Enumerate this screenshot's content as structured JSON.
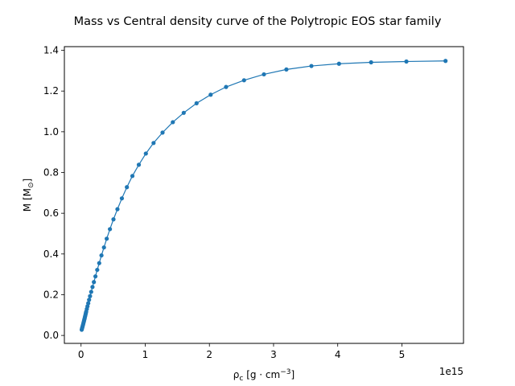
{
  "chart_data": {
    "type": "line",
    "title": "Mass vs Central density curve of the Polytropic EOS star family",
    "xlabel": "ρ_c [g · cm^−3]",
    "ylabel": "M [M_⊙]",
    "x_offset_label": "1e15",
    "x_scale": 1000000000000000.0,
    "xlim": [
      -0.26,
      5.96
    ],
    "ylim": [
      -0.039,
      1.418
    ],
    "x_ticks": [
      "0",
      "1",
      "2",
      "3",
      "4",
      "5"
    ],
    "y_ticks": [
      "0.0",
      "0.2",
      "0.4",
      "0.6",
      "0.8",
      "1.0",
      "1.2",
      "1.4"
    ],
    "grid": false,
    "line_color": "#1f77b4",
    "series": [
      {
        "x": [
          0.01,
          0.015,
          0.02,
          0.025,
          0.03,
          0.035,
          0.04,
          0.045,
          0.05,
          0.055,
          0.06,
          0.065,
          0.07,
          0.075,
          0.08,
          0.09,
          0.1,
          0.112,
          0.125,
          0.14,
          0.158,
          0.178,
          0.2,
          0.224,
          0.252,
          0.283,
          0.318,
          0.357,
          0.4,
          0.45,
          0.505,
          0.567,
          0.636,
          0.714,
          0.8,
          0.9,
          1.01,
          1.13,
          1.27,
          1.43,
          1.6,
          1.8,
          2.02,
          2.26,
          2.54,
          2.85,
          3.2,
          3.59,
          4.02,
          4.52,
          5.07,
          5.68
        ],
        "y": [
          0.028,
          0.034,
          0.04,
          0.046,
          0.052,
          0.058,
          0.064,
          0.07,
          0.077,
          0.083,
          0.09,
          0.096,
          0.103,
          0.11,
          0.117,
          0.13,
          0.143,
          0.158,
          0.175,
          0.193,
          0.214,
          0.238,
          0.262,
          0.29,
          0.322,
          0.355,
          0.393,
          0.432,
          0.475,
          0.522,
          0.57,
          0.62,
          0.673,
          0.728,
          0.783,
          0.838,
          0.893,
          0.945,
          0.996,
          1.047,
          1.093,
          1.14,
          1.182,
          1.22,
          1.253,
          1.282,
          1.306,
          1.323,
          1.334,
          1.341,
          1.345,
          1.348
        ]
      }
    ]
  }
}
